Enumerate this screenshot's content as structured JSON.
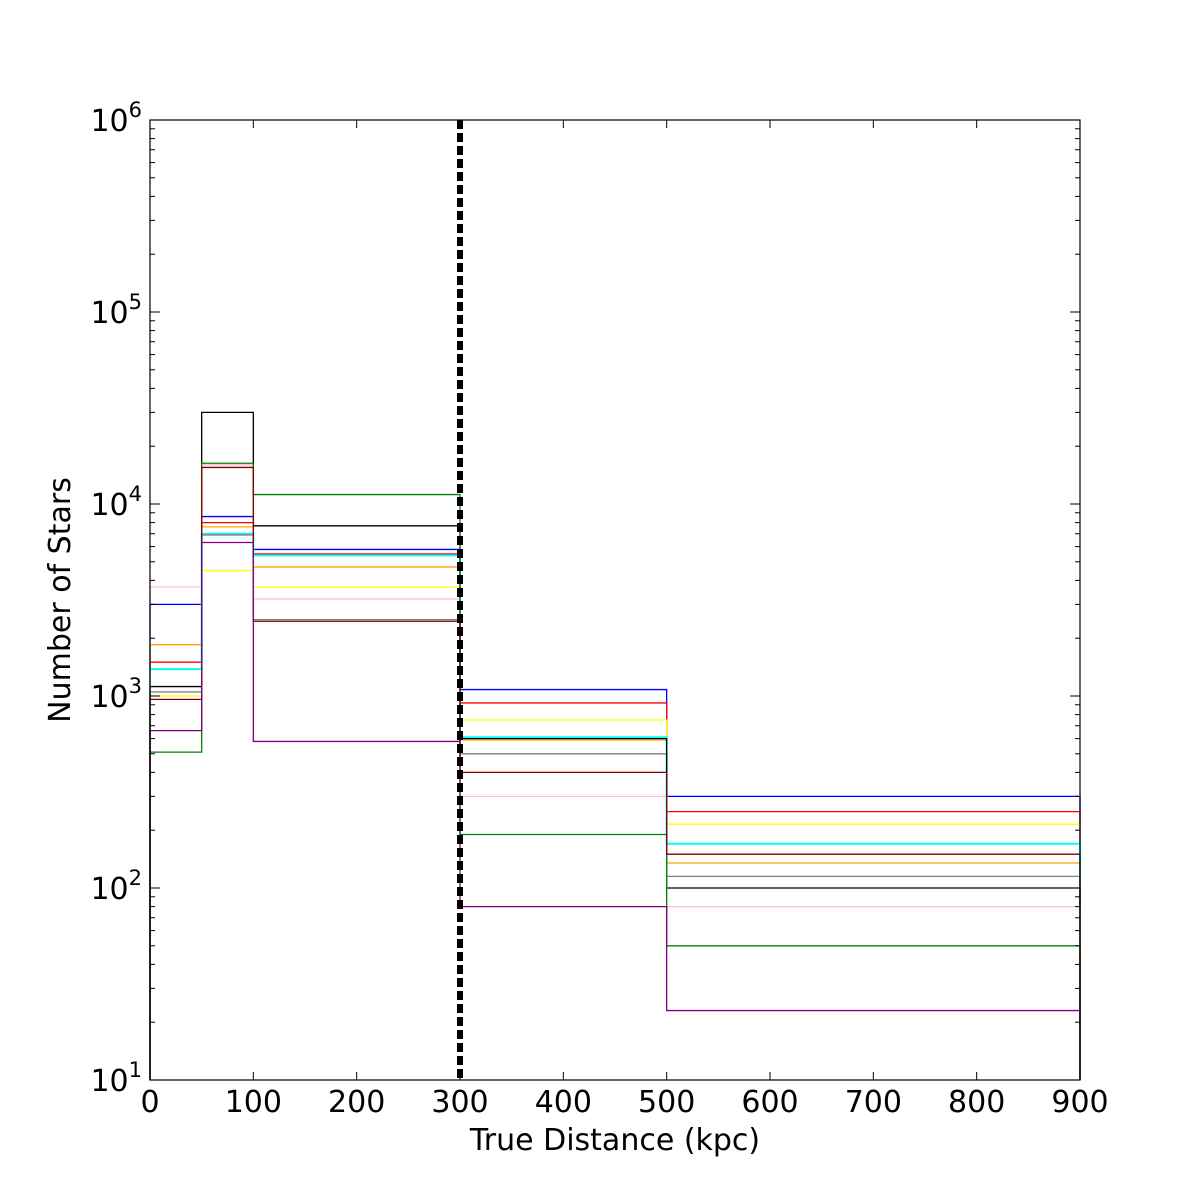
{
  "chart_data": {
    "type": "line",
    "title": "",
    "xlabel": "True Distance (kpc)",
    "ylabel": "Number of Stars",
    "xlim": [
      0,
      900
    ],
    "ylim": [
      10,
      1000000
    ],
    "yscale": "log",
    "grid": false,
    "x_ticks": [
      0,
      100,
      200,
      300,
      400,
      500,
      600,
      700,
      800,
      900
    ],
    "x_tick_labels": [
      "0",
      "100",
      "200",
      "300",
      "400",
      "500",
      "600",
      "700",
      "800",
      "900"
    ],
    "y_ticks": [
      {
        "value": 10,
        "base": "10",
        "exp": "1"
      },
      {
        "value": 100,
        "base": "10",
        "exp": "2"
      },
      {
        "value": 1000,
        "base": "10",
        "exp": "3"
      },
      {
        "value": 10000,
        "base": "10",
        "exp": "4"
      },
      {
        "value": 100000,
        "base": "10",
        "exp": "5"
      },
      {
        "value": 1000000,
        "base": "10",
        "exp": "6"
      }
    ],
    "bin_edges": [
      0,
      50,
      100,
      300,
      500,
      900
    ],
    "vertical_line": {
      "x": 300,
      "style": "dotted",
      "color": "#000000"
    },
    "series": [
      {
        "color": "#0000ff",
        "values": [
          3000,
          8600,
          5800,
          1080,
          300
        ]
      },
      {
        "color": "#ff0000",
        "values": [
          1500,
          8000,
          5500,
          920,
          250
        ]
      },
      {
        "color": "#ffff00",
        "values": [
          1000,
          4500,
          3700,
          750,
          215
        ]
      },
      {
        "color": "#00ffff",
        "values": [
          1380,
          7000,
          5400,
          610,
          170
        ]
      },
      {
        "color": "#ffa500",
        "values": [
          1850,
          7600,
          4700,
          590,
          135
        ]
      },
      {
        "color": "#808080",
        "values": [
          1050,
          6900,
          2500,
          500,
          115
        ]
      },
      {
        "color": "#000000",
        "values": [
          1120,
          30000,
          7700,
          600,
          100
        ]
      },
      {
        "color": "#ffc0cb",
        "values": [
          3700,
          16000,
          3200,
          300,
          80
        ]
      },
      {
        "color": "#008000",
        "values": [
          510,
          16300,
          11200,
          190,
          50
        ]
      },
      {
        "color": "#800000",
        "values": [
          960,
          15500,
          2450,
          400,
          150
        ]
      },
      {
        "color": "#800080",
        "values": [
          660,
          6300,
          580,
          80,
          23
        ]
      }
    ]
  }
}
